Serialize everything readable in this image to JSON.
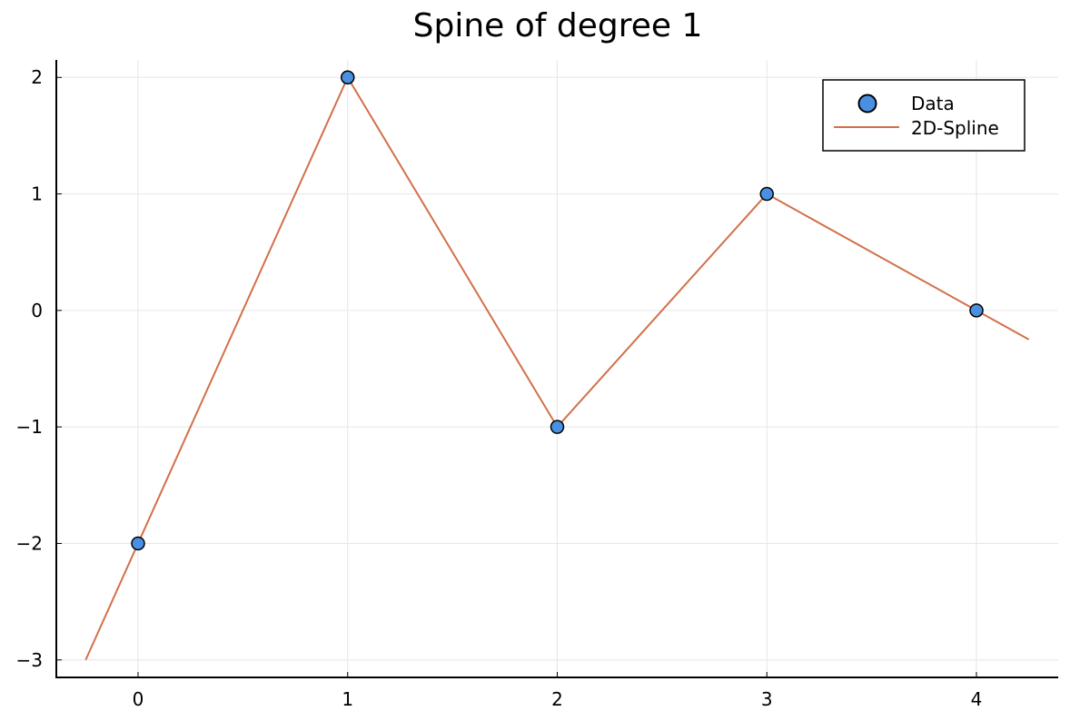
{
  "chart_data": {
    "type": "line",
    "title": "Spine of degree 1",
    "xlabel": "",
    "ylabel": "",
    "xlim": [
      -0.39,
      4.39
    ],
    "ylim": [
      -3.15,
      2.15
    ],
    "xticks": [
      0,
      1,
      2,
      3,
      4
    ],
    "yticks": [
      -3,
      -2,
      -1,
      0,
      1,
      2
    ],
    "xtick_labels": [
      "0",
      "1",
      "2",
      "3",
      "4"
    ],
    "ytick_labels": [
      "−3",
      "−2",
      "−1",
      "0",
      "1",
      "2"
    ],
    "grid": true,
    "legend_position": "top-right",
    "series": [
      {
        "name": "Data",
        "kind": "scatter",
        "color": "#4a90e2",
        "x": [
          0,
          1,
          2,
          3,
          4
        ],
        "y": [
          -2,
          2,
          -1,
          1,
          0
        ]
      },
      {
        "name": "2D-Spline",
        "kind": "line",
        "color": "#d2704a",
        "x": [
          -0.25,
          0,
          1,
          2,
          3,
          4,
          4.25
        ],
        "y": [
          -3,
          -2,
          2,
          -1,
          1,
          0,
          -0.25
        ]
      }
    ]
  }
}
